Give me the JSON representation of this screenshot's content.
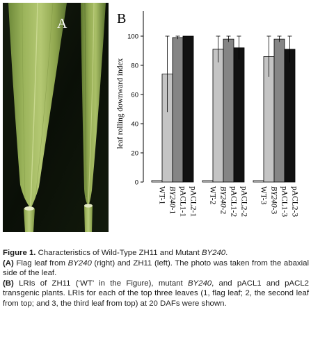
{
  "panel_a": {
    "label": "A"
  },
  "chart_data": {
    "type": "bar",
    "panel_label": "B",
    "ylabel": "leaf rolling downward index",
    "ylim": [
      0,
      100
    ],
    "yticks": [
      0,
      20,
      40,
      60,
      80,
      100
    ],
    "grid": false,
    "groups": [
      {
        "bars": [
          {
            "category": "WT-1",
            "value": 1,
            "err": 0,
            "color": "#ffffff"
          },
          {
            "category": "BY240-1",
            "value": 74,
            "err": 26,
            "color": "#c4c4c4"
          },
          {
            "category": "pACL1-1",
            "value": 99,
            "err": 1,
            "color": "#858585"
          },
          {
            "category": "pACL2-1",
            "value": 100,
            "err": 0,
            "color": "#111111"
          }
        ]
      },
      {
        "bars": [
          {
            "category": "WT-2",
            "value": 1,
            "err": 0,
            "color": "#ffffff"
          },
          {
            "category": "BY240-2",
            "value": 91,
            "err": 9,
            "color": "#c4c4c4"
          },
          {
            "category": "pACL1-2",
            "value": 98,
            "err": 2,
            "color": "#858585"
          },
          {
            "category": "pACL2-2",
            "value": 92,
            "err": 8,
            "color": "#111111"
          }
        ]
      },
      {
        "bars": [
          {
            "category": "WT-3",
            "value": 1,
            "err": 0,
            "color": "#ffffff"
          },
          {
            "category": "BY240-3",
            "value": 86,
            "err": 14,
            "color": "#c4c4c4"
          },
          {
            "category": "pACL1-3",
            "value": 98,
            "err": 2,
            "color": "#858585"
          },
          {
            "category": "pACL2-3",
            "value": 91,
            "err": 9,
            "color": "#111111"
          }
        ]
      }
    ]
  },
  "caption": {
    "figure_label": "Figure 1.",
    "title_part1": " Characteristics of Wild-Type ZH11 and Mutant ",
    "title_italic": "BY240",
    "title_part2": ".",
    "a_label": "(A)",
    "a_part1": " Flag leaf from ",
    "a_italic": "BY240",
    "a_part2": " (right) and ZH11 (left). The photo was taken from the abaxial side of the leaf.",
    "b_label": "(B)",
    "b_part1": " LRIs of ZH11 (‘WT’ in the Figure), mutant ",
    "b_italic": "BY240",
    "b_part2": ", and pACL1 and pACL2 transgenic plants. LRIs for each of the top three leaves (1, flag leaf; 2, the second leaf from top; and 3, the third leaf from top) at 20 DAFs were shown."
  }
}
